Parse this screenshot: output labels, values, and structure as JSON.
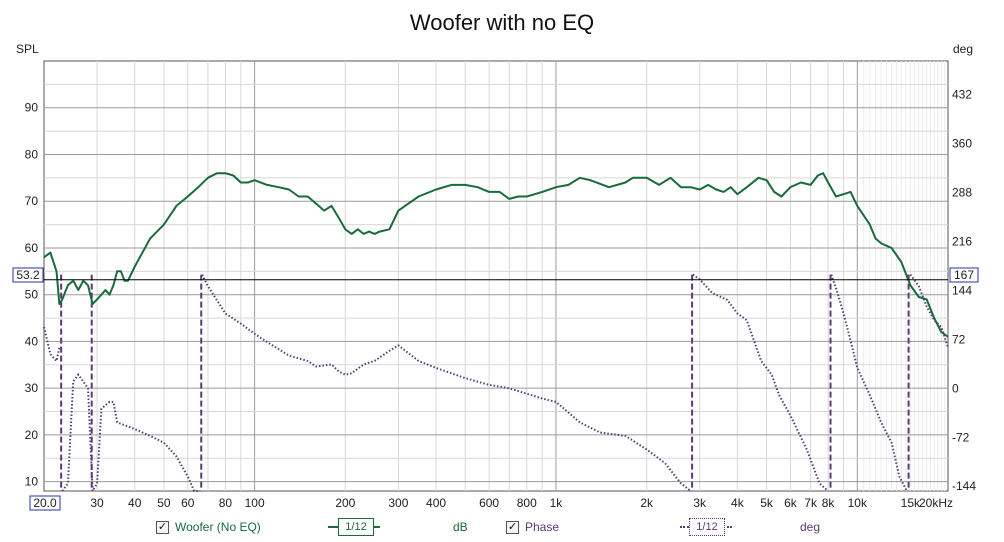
{
  "window": {
    "title": "Woofer with no EQ"
  },
  "axes": {
    "left_unit": "SPL",
    "right_unit": "deg",
    "left_ticks": [
      "90",
      "80",
      "70",
      "60",
      "50",
      "40",
      "30",
      "20",
      "10"
    ],
    "right_ticks": [
      "432",
      "360",
      "288",
      "216",
      "144",
      "72",
      "0",
      "-72",
      "-144"
    ],
    "x_ticks": [
      "30",
      "40",
      "50",
      "60",
      "80",
      "100",
      "200",
      "300",
      "400",
      "600",
      "800",
      "1k",
      "2k",
      "3k",
      "4k",
      "5k",
      "6k",
      "7k",
      "8k",
      "10k",
      "15k",
      "20kHz"
    ],
    "x_start_label": "20.0",
    "cursor_left": "53.2",
    "cursor_right": "167"
  },
  "legend": {
    "woofer_label": "Woofer (No EQ)",
    "woofer_checked": "✓",
    "woofer_smoothing": "1/12",
    "woofer_unit": "dB",
    "phase_label": "Phase",
    "phase_checked": "✓",
    "phase_smoothing": "1/12",
    "phase_unit": "deg"
  },
  "colors": {
    "spl": "#1a6b3c",
    "phase": "#5a3a7a",
    "grid_major": "#9a9a9a",
    "grid_minor": "#d8d8d8",
    "cursor": "#000000"
  },
  "chart_data": {
    "type": "line",
    "title": "Woofer with no EQ",
    "xscale": "log",
    "xlim": [
      20,
      20000
    ],
    "ylim_left": [
      8,
      100
    ],
    "ylim_right": [
      -151,
      481
    ],
    "series": [
      {
        "name": "Woofer (No EQ)",
        "axis": "left",
        "points": [
          [
            20,
            58
          ],
          [
            21,
            59
          ],
          [
            22,
            55
          ],
          [
            22.5,
            48
          ],
          [
            23,
            49
          ],
          [
            24,
            52
          ],
          [
            25,
            53
          ],
          [
            26,
            51
          ],
          [
            27,
            53
          ],
          [
            28,
            52
          ],
          [
            29,
            48
          ],
          [
            30,
            49
          ],
          [
            32,
            51
          ],
          [
            33,
            50
          ],
          [
            34,
            52
          ],
          [
            35,
            55
          ],
          [
            36,
            55
          ],
          [
            37,
            53
          ],
          [
            38,
            53
          ],
          [
            40,
            56
          ],
          [
            45,
            62
          ],
          [
            50,
            65
          ],
          [
            55,
            69
          ],
          [
            60,
            71
          ],
          [
            65,
            73
          ],
          [
            70,
            75
          ],
          [
            75,
            76
          ],
          [
            80,
            76
          ],
          [
            85,
            75.5
          ],
          [
            90,
            74
          ],
          [
            95,
            74
          ],
          [
            100,
            74.5
          ],
          [
            110,
            73.5
          ],
          [
            120,
            73
          ],
          [
            130,
            72.5
          ],
          [
            140,
            71
          ],
          [
            150,
            71
          ],
          [
            160,
            69.5
          ],
          [
            170,
            68
          ],
          [
            180,
            69
          ],
          [
            190,
            66.5
          ],
          [
            200,
            64
          ],
          [
            210,
            63
          ],
          [
            220,
            64
          ],
          [
            230,
            63
          ],
          [
            240,
            63.5
          ],
          [
            250,
            63
          ],
          [
            260,
            63.5
          ],
          [
            280,
            64
          ],
          [
            300,
            68
          ],
          [
            350,
            71
          ],
          [
            400,
            72.5
          ],
          [
            450,
            73.5
          ],
          [
            500,
            73.5
          ],
          [
            550,
            73
          ],
          [
            600,
            72
          ],
          [
            650,
            72
          ],
          [
            700,
            70.5
          ],
          [
            750,
            71
          ],
          [
            800,
            71
          ],
          [
            850,
            71.5
          ],
          [
            900,
            72
          ],
          [
            1000,
            73
          ],
          [
            1100,
            73.5
          ],
          [
            1200,
            75
          ],
          [
            1300,
            74.5
          ],
          [
            1500,
            73
          ],
          [
            1700,
            74
          ],
          [
            1800,
            75
          ],
          [
            2000,
            75
          ],
          [
            2200,
            73.5
          ],
          [
            2400,
            75
          ],
          [
            2600,
            73
          ],
          [
            2800,
            73
          ],
          [
            3000,
            72.5
          ],
          [
            3200,
            73.5
          ],
          [
            3400,
            72.5
          ],
          [
            3600,
            72
          ],
          [
            3800,
            73
          ],
          [
            4000,
            71.5
          ],
          [
            4300,
            73
          ],
          [
            4700,
            75
          ],
          [
            5000,
            74.5
          ],
          [
            5300,
            72
          ],
          [
            5600,
            71
          ],
          [
            6000,
            73
          ],
          [
            6500,
            74
          ],
          [
            7000,
            73.5
          ],
          [
            7400,
            75.5
          ],
          [
            7700,
            76
          ],
          [
            8000,
            74
          ],
          [
            8500,
            71
          ],
          [
            9000,
            71.5
          ],
          [
            9500,
            72
          ],
          [
            10000,
            69
          ],
          [
            11000,
            65
          ],
          [
            11500,
            62
          ],
          [
            12000,
            61
          ],
          [
            13000,
            60
          ],
          [
            14000,
            57
          ],
          [
            15000,
            52
          ],
          [
            16000,
            49.5
          ],
          [
            17000,
            49
          ],
          [
            18000,
            45
          ],
          [
            19000,
            42
          ],
          [
            20000,
            41
          ]
        ]
      },
      {
        "name": "Phase",
        "axis": "right",
        "points": [
          [
            20,
            90
          ],
          [
            21,
            50
          ],
          [
            22,
            40
          ],
          [
            22.5,
            60
          ],
          [
            23,
            -151
          ],
          [
            24,
            -140
          ],
          [
            25,
            10
          ],
          [
            26,
            20
          ],
          [
            27,
            10
          ],
          [
            28,
            0
          ],
          [
            29,
            -151
          ],
          [
            30,
            -140
          ],
          [
            31,
            -30
          ],
          [
            33,
            -20
          ],
          [
            34,
            -20
          ],
          [
            35,
            -50
          ],
          [
            40,
            -60
          ],
          [
            45,
            -70
          ],
          [
            50,
            -80
          ],
          [
            55,
            -100
          ],
          [
            60,
            -130
          ],
          [
            63,
            -151
          ],
          [
            66,
            -151
          ],
          [
            67,
            167
          ],
          [
            70,
            150
          ],
          [
            80,
            110
          ],
          [
            90,
            95
          ],
          [
            100,
            80
          ],
          [
            110,
            68
          ],
          [
            130,
            48
          ],
          [
            150,
            40
          ],
          [
            160,
            32
          ],
          [
            180,
            35
          ],
          [
            190,
            25
          ],
          [
            200,
            20
          ],
          [
            210,
            22
          ],
          [
            230,
            35
          ],
          [
            250,
            40
          ],
          [
            280,
            55
          ],
          [
            300,
            63
          ],
          [
            350,
            40
          ],
          [
            400,
            30
          ],
          [
            500,
            15
          ],
          [
            600,
            5
          ],
          [
            700,
            0
          ],
          [
            900,
            -15
          ],
          [
            1000,
            -20
          ],
          [
            1200,
            -50
          ],
          [
            1400,
            -65
          ],
          [
            1700,
            -70
          ],
          [
            2000,
            -90
          ],
          [
            2300,
            -110
          ],
          [
            2600,
            -140
          ],
          [
            2800,
            -151
          ],
          [
            2850,
            167
          ],
          [
            3000,
            160
          ],
          [
            3300,
            140
          ],
          [
            3700,
            130
          ],
          [
            4000,
            110
          ],
          [
            4300,
            100
          ],
          [
            4800,
            40
          ],
          [
            5200,
            20
          ],
          [
            5500,
            -10
          ],
          [
            6000,
            -40
          ],
          [
            6800,
            -90
          ],
          [
            7500,
            -140
          ],
          [
            8000,
            -151
          ],
          [
            8200,
            167
          ],
          [
            8600,
            140
          ],
          [
            9000,
            110
          ],
          [
            9500,
            70
          ],
          [
            10000,
            30
          ],
          [
            11000,
            -10
          ],
          [
            12000,
            -50
          ],
          [
            13000,
            -80
          ],
          [
            13800,
            -130
          ],
          [
            14600,
            -151
          ],
          [
            15000,
            167
          ],
          [
            16000,
            150
          ],
          [
            17000,
            120
          ],
          [
            18000,
            100
          ],
          [
            19000,
            90
          ],
          [
            20000,
            60
          ]
        ]
      }
    ],
    "vertical_phase_wraps": [
      22.8,
      28.8,
      66.5,
      2830,
      8150,
      14800
    ],
    "cursor": {
      "spl": 53.2,
      "phase": 167
    }
  }
}
